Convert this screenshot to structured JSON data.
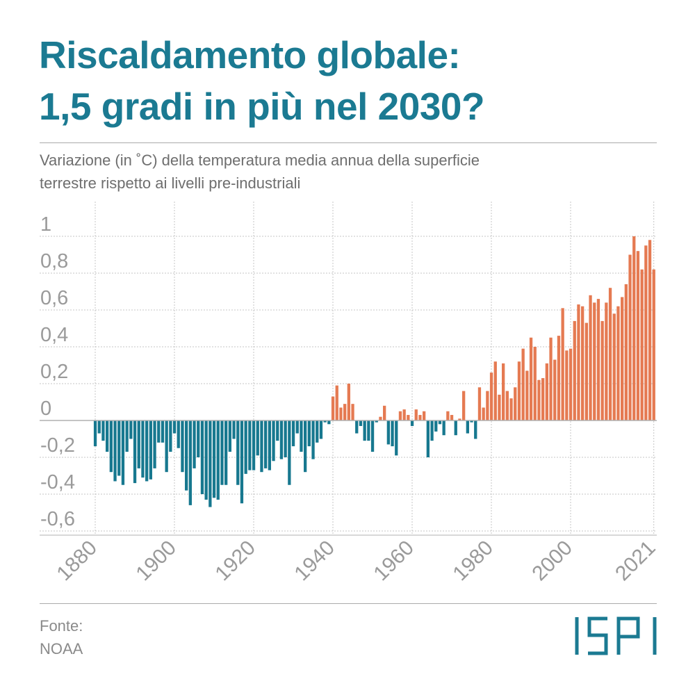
{
  "title_line1": "Riscaldamento globale:",
  "title_line2": "1,5 gradi in più nel 2030?",
  "subtitle_line1": "Variazione (in ˚C) della temperatura media annua della superficie",
  "subtitle_line2": "terrestre rispetto ai livelli pre-industriali",
  "source_label": "Fonte:",
  "source_value": "NOAA",
  "logo_text": "ISPI",
  "colors": {
    "title": "#1b7a92",
    "negative": "#17788f",
    "positive": "#e57a52",
    "logo": "#1b7a92"
  },
  "chart_data": {
    "type": "bar",
    "title": "",
    "xlabel": "",
    "ylabel": "°C",
    "ylim": [
      -0.6,
      1.0
    ],
    "xlim": [
      1880,
      2021
    ],
    "yticks": [
      1,
      0.8,
      0.6,
      0.4,
      0.2,
      0,
      -0.2,
      -0.4,
      -0.6
    ],
    "ytick_labels": [
      "1",
      "0,8",
      "0,6",
      "0,4",
      "0,2",
      "0",
      "-0,2",
      "-0,4",
      "-0,6"
    ],
    "xticks": [
      1880,
      1900,
      1920,
      1940,
      1960,
      1980,
      2000,
      2021
    ],
    "xtick_labels": [
      "1880",
      "1900",
      "1920",
      "1940",
      "1960",
      "1980",
      "2000",
      "2021"
    ],
    "grid": true,
    "start_year": 1880,
    "values": [
      -0.14,
      -0.07,
      -0.11,
      -0.17,
      -0.28,
      -0.33,
      -0.3,
      -0.35,
      -0.17,
      -0.1,
      -0.34,
      -0.26,
      -0.31,
      -0.33,
      -0.32,
      -0.26,
      -0.12,
      -0.12,
      -0.28,
      -0.17,
      -0.07,
      -0.15,
      -0.28,
      -0.38,
      -0.46,
      -0.26,
      -0.2,
      -0.4,
      -0.43,
      -0.47,
      -0.42,
      -0.43,
      -0.35,
      -0.35,
      -0.17,
      -0.1,
      -0.35,
      -0.45,
      -0.29,
      -0.27,
      -0.27,
      -0.19,
      -0.28,
      -0.26,
      -0.27,
      -0.22,
      -0.11,
      -0.21,
      -0.2,
      -0.35,
      -0.14,
      -0.07,
      -0.17,
      -0.28,
      -0.14,
      -0.21,
      -0.12,
      -0.1,
      -0.01,
      -0.02,
      0.13,
      0.19,
      0.07,
      0.09,
      0.2,
      0.09,
      -0.07,
      -0.03,
      -0.11,
      -0.11,
      -0.17,
      -0.01,
      0.02,
      0.08,
      -0.13,
      -0.14,
      -0.19,
      0.05,
      0.06,
      0.03,
      -0.03,
      0.06,
      0.03,
      0.05,
      -0.2,
      -0.11,
      -0.06,
      -0.02,
      -0.08,
      0.05,
      0.03,
      -0.08,
      0.01,
      0.16,
      -0.07,
      -0.01,
      -0.1,
      0.18,
      0.07,
      0.16,
      0.26,
      0.32,
      0.14,
      0.31,
      0.16,
      0.12,
      0.18,
      0.32,
      0.39,
      0.27,
      0.45,
      0.4,
      0.22,
      0.23,
      0.31,
      0.45,
      0.33,
      0.46,
      0.61,
      0.38,
      0.39,
      0.54,
      0.63,
      0.62,
      0.53,
      0.68,
      0.64,
      0.66,
      0.54,
      0.64,
      0.72,
      0.58,
      0.62,
      0.67,
      0.74,
      0.9,
      1.0,
      0.92,
      0.82,
      0.95,
      0.98,
      0.82
    ]
  }
}
